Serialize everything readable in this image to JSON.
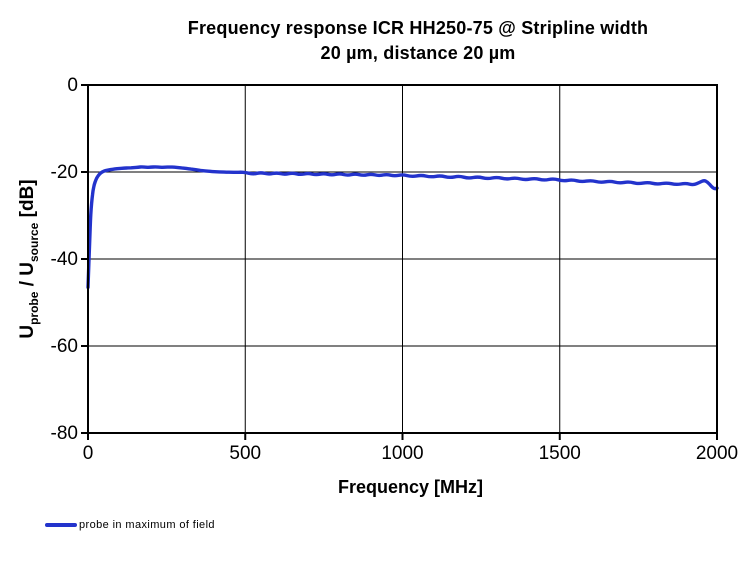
{
  "title": {
    "line1": "Frequency response ICR HH250-75 @ Stripline width",
    "line2": "20 µm, distance 20 µm"
  },
  "y_axis": {
    "label_parts": {
      "u1": "U",
      "sub1": "probe",
      "mid": " / U",
      "sub2": "source",
      "tail": " [dB]"
    }
  },
  "x_axis": {
    "label": "Frequency [MHz]"
  },
  "legend": [
    {
      "label": "probe in maximum of field",
      "color": "#2333cc"
    }
  ],
  "colors": {
    "line": "#2333cc",
    "grid": "#000000",
    "axis": "#000000",
    "background": "#ffffff"
  },
  "chart_data": {
    "type": "line",
    "title": "Frequency response ICR HH250-75 @ Stripline width 20 µm, distance 20 µm",
    "xlabel": "Frequency [MHz]",
    "ylabel": "Uprobe / Usource [dB]",
    "xlim": [
      0,
      2000
    ],
    "ylim": [
      -80,
      0
    ],
    "x_ticks": [
      0,
      500,
      1000,
      1500,
      2000
    ],
    "y_ticks": [
      0,
      -20,
      -40,
      -60,
      -80
    ],
    "grid": true,
    "legend_position": "bottom-left",
    "series": [
      {
        "name": "probe in maximum of field",
        "color": "#2333cc",
        "points": [
          [
            0,
            -46.5
          ],
          [
            2,
            -43
          ],
          [
            4,
            -38.5
          ],
          [
            6,
            -34.5
          ],
          [
            8,
            -31
          ],
          [
            10,
            -28.5
          ],
          [
            13,
            -26
          ],
          [
            16,
            -24.2
          ],
          [
            20,
            -22.8
          ],
          [
            25,
            -21.8
          ],
          [
            30,
            -21.1
          ],
          [
            36,
            -20.5
          ],
          [
            43,
            -20.1
          ],
          [
            50,
            -19.8
          ],
          [
            60,
            -19.6
          ],
          [
            72,
            -19.45
          ],
          [
            85,
            -19.3
          ],
          [
            100,
            -19.2
          ],
          [
            115,
            -19.1
          ],
          [
            130,
            -19.05
          ],
          [
            145,
            -19
          ],
          [
            160,
            -18.9
          ],
          [
            172,
            -18.8
          ],
          [
            185,
            -18.95
          ],
          [
            200,
            -18.9
          ],
          [
            215,
            -18.8
          ],
          [
            230,
            -18.95
          ],
          [
            245,
            -18.9
          ],
          [
            260,
            -18.85
          ],
          [
            275,
            -18.9
          ],
          [
            290,
            -19
          ],
          [
            305,
            -19.1
          ],
          [
            320,
            -19.25
          ],
          [
            335,
            -19.4
          ],
          [
            350,
            -19.55
          ],
          [
            365,
            -19.7
          ],
          [
            380,
            -19.8
          ],
          [
            395,
            -19.9
          ],
          [
            410,
            -19.95
          ],
          [
            425,
            -20
          ],
          [
            440,
            -20.05
          ],
          [
            455,
            -20.05
          ],
          [
            470,
            -20.1
          ],
          [
            485,
            -20.05
          ],
          [
            500,
            -20.1
          ],
          [
            525,
            -20.5
          ],
          [
            550,
            -20.1
          ],
          [
            575,
            -20.55
          ],
          [
            600,
            -20.15
          ],
          [
            625,
            -20.6
          ],
          [
            650,
            -20.2
          ],
          [
            675,
            -20.65
          ],
          [
            700,
            -20.25
          ],
          [
            725,
            -20.7
          ],
          [
            750,
            -20.3
          ],
          [
            775,
            -20.75
          ],
          [
            800,
            -20.35
          ],
          [
            825,
            -20.8
          ],
          [
            850,
            -20.4
          ],
          [
            875,
            -20.85
          ],
          [
            900,
            -20.45
          ],
          [
            925,
            -20.9
          ],
          [
            950,
            -20.5
          ],
          [
            975,
            -20.95
          ],
          [
            1000,
            -20.55
          ],
          [
            1030,
            -21.1
          ],
          [
            1060,
            -20.7
          ],
          [
            1090,
            -21.2
          ],
          [
            1120,
            -20.8
          ],
          [
            1150,
            -21.35
          ],
          [
            1180,
            -20.9
          ],
          [
            1210,
            -21.5
          ],
          [
            1240,
            -21.05
          ],
          [
            1270,
            -21.6
          ],
          [
            1300,
            -21.15
          ],
          [
            1330,
            -21.7
          ],
          [
            1360,
            -21.3
          ],
          [
            1390,
            -21.85
          ],
          [
            1420,
            -21.4
          ],
          [
            1450,
            -21.95
          ],
          [
            1480,
            -21.5
          ],
          [
            1510,
            -22.1
          ],
          [
            1540,
            -21.75
          ],
          [
            1570,
            -22.3
          ],
          [
            1600,
            -21.9
          ],
          [
            1630,
            -22.45
          ],
          [
            1660,
            -22.05
          ],
          [
            1690,
            -22.6
          ],
          [
            1720,
            -22.2
          ],
          [
            1750,
            -22.75
          ],
          [
            1780,
            -22.35
          ],
          [
            1810,
            -22.85
          ],
          [
            1840,
            -22.45
          ],
          [
            1870,
            -22.95
          ],
          [
            1900,
            -22.55
          ],
          [
            1925,
            -23
          ],
          [
            1945,
            -22.4
          ],
          [
            1958,
            -21.9
          ],
          [
            1970,
            -22.3
          ],
          [
            1982,
            -23.3
          ],
          [
            1992,
            -23.9
          ],
          [
            2000,
            -23.7
          ]
        ]
      }
    ]
  }
}
